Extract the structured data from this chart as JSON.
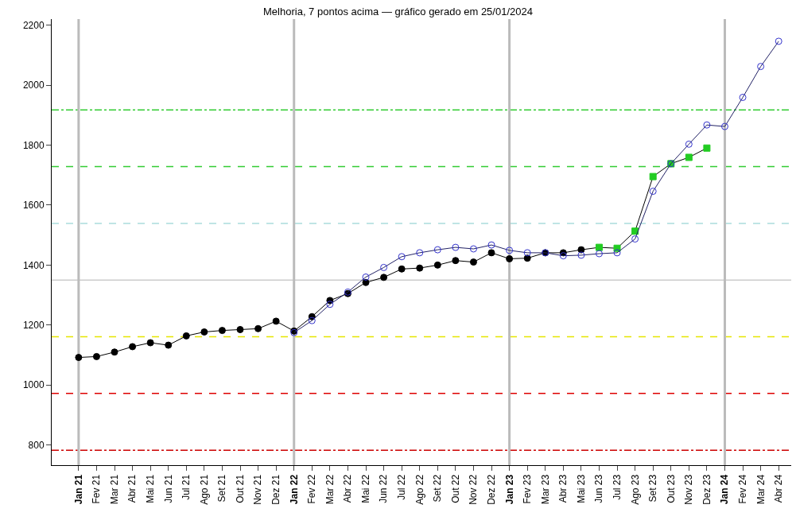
{
  "chart_data": {
    "type": "line",
    "title": "Melhoria, 7 pontos acima — gráfico gerado em 25/01/2024",
    "categories": [
      "Jan 21",
      "Fev 21",
      "Mar 21",
      "Abr 21",
      "Mai 21",
      "Jun 21",
      "Jul 21",
      "Ago 21",
      "Set 21",
      "Out 21",
      "Nov 21",
      "Dez 21",
      "Jan 22",
      "Fev 22",
      "Mar 22",
      "Abr 22",
      "Mai 22",
      "Jun 22",
      "Jul 22",
      "Ago 22",
      "Set 22",
      "Out 22",
      "Nov 22",
      "Dez 22",
      "Jan 23",
      "Fev 23",
      "Mar 23",
      "Abr 23",
      "Mai 23",
      "Jun 23",
      "Jul 23",
      "Ago 23",
      "Set 23",
      "Out 23",
      "Nov 23",
      "Dez 23",
      "Jan 24",
      "Fev 24",
      "Mar 24",
      "Abr 24"
    ],
    "series": [
      {
        "color": "#000000",
        "marker": "circle",
        "colors": [
          "#000000",
          "#000000",
          "#000000",
          "#000000",
          "#000000",
          "#000000",
          "#000000",
          "#000000",
          "#000000",
          "#000000",
          "#000000",
          "#000000",
          "#000000",
          "#000000",
          "#000000",
          "#000000",
          "#000000",
          "#000000",
          "#000000",
          "#000000",
          "#000000",
          "#000000",
          "#000000",
          "#000000",
          "#000000",
          "#000000",
          "#000000",
          "#000000",
          "#000000",
          "#22cc22",
          "#22cc22",
          "#22cc22",
          "#22cc22",
          "#22cc22",
          "#22cc22",
          "#22cc22",
          null,
          null,
          null,
          null
        ],
        "values": [
          1092,
          1095,
          1110,
          1128,
          1141,
          1133,
          1164,
          1177,
          1182,
          1185,
          1188,
          1213,
          1180,
          1228,
          1282,
          1305,
          1342,
          1359,
          1387,
          1390,
          1400,
          1415,
          1410,
          1441,
          1421,
          1423,
          1441,
          1441,
          1451,
          1459,
          1456,
          1513,
          1695,
          1738,
          1759,
          1790,
          null,
          null,
          null,
          null
        ]
      },
      {
        "color": "#3333cc",
        "marker": "circle-open",
        "values": [
          null,
          null,
          null,
          null,
          null,
          null,
          null,
          null,
          null,
          null,
          null,
          null,
          1175,
          1215,
          1269,
          1310,
          1360,
          1392,
          1428,
          1441,
          1451,
          1459,
          1454,
          1467,
          1449,
          1441,
          1441,
          1431,
          1433,
          1438,
          1441,
          1487,
          1646,
          1738,
          1803,
          1867,
          1862,
          1959,
          2062,
          2146
        ]
      }
    ],
    "ylim": [
      733,
      2220
    ],
    "yticks": [
      800,
      1000,
      1200,
      1400,
      1600,
      1800,
      2000,
      2200
    ],
    "grid": false,
    "ref_lines": [
      {
        "axis": "y",
        "value": 1917,
        "color": "#33cc33",
        "line_style": "dashdot"
      },
      {
        "axis": "y",
        "value": 1728,
        "color": "#33cc33",
        "line_style": "dashed"
      },
      {
        "axis": "y",
        "value": 1539,
        "color": "#aadddd",
        "line_style": "dashed"
      },
      {
        "axis": "y",
        "value": 1350,
        "color": "#cccccc",
        "line_style": "solid"
      },
      {
        "axis": "y",
        "value": 1161,
        "color": "#e6e600",
        "line_style": "dashed"
      },
      {
        "axis": "y",
        "value": 972,
        "color": "#dd0000",
        "line_style": "dashed"
      },
      {
        "axis": "y",
        "value": 783,
        "color": "#cc0000",
        "line_style": "dashdot"
      },
      {
        "axis": "x",
        "value": "Jan 21",
        "color": "#bbbbbb",
        "line_style": "solid"
      },
      {
        "axis": "x",
        "value": "Jan 22",
        "color": "#bbbbbb",
        "line_style": "solid"
      },
      {
        "axis": "x",
        "value": "Jan 23",
        "color": "#bbbbbb",
        "line_style": "solid"
      },
      {
        "axis": "x",
        "value": "Jan 24",
        "color": "#bbbbbb",
        "line_style": "solid"
      }
    ]
  }
}
